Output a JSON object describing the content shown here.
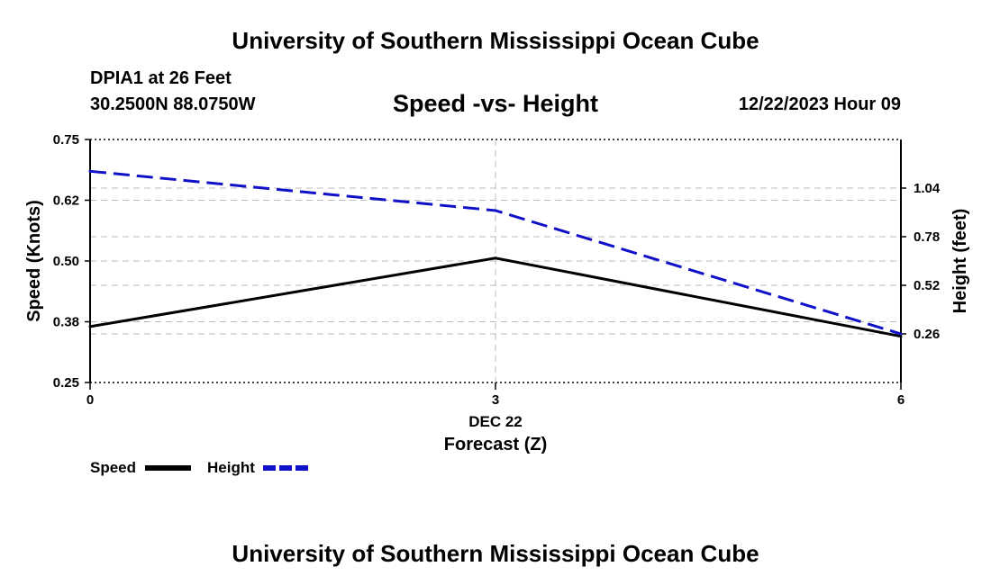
{
  "header": {
    "title": "University of Southern Mississippi Ocean Cube",
    "station": "DPIA1 at 26 Feet",
    "coordinates": "30.2500N  88.0750W",
    "chart_title": "Speed -vs- Height",
    "datetime": "12/22/2023 Hour 09"
  },
  "footer": {
    "title": "University of Southern Mississippi Ocean Cube"
  },
  "legend": {
    "speed_label": "Speed",
    "height_label": "Height"
  },
  "colors": {
    "speed": "#000000",
    "height": "#1010c8",
    "grid": "#bbbbbb"
  },
  "chart_data": {
    "type": "line",
    "x": [
      0,
      3,
      6
    ],
    "xticks": [
      "0",
      "3",
      "6"
    ],
    "xlim": [
      0,
      6
    ],
    "xdate_label": "DEC 22",
    "xlabel": "Forecast (Z)",
    "ylabel_left": "Speed (Knots)",
    "ylabel_right": "Height (feet)",
    "ylim_left": [
      0.25,
      0.75
    ],
    "yticks_left": [
      "0.25",
      "0.38",
      "0.50",
      "0.62",
      "0.75"
    ],
    "ytick_values_left": [
      0.25,
      0.375,
      0.5,
      0.625,
      0.75
    ],
    "ylim_right": [
      0.0,
      1.3
    ],
    "yticks_right": [
      "0.26",
      "0.52",
      "0.78",
      "1.04"
    ],
    "ytick_values_right": [
      0.26,
      0.52,
      0.78,
      1.04
    ],
    "series": [
      {
        "name": "Speed",
        "axis": "left",
        "style": "solid",
        "values": [
          0.365,
          0.506,
          0.345
        ]
      },
      {
        "name": "Height",
        "axis": "right",
        "style": "dashed",
        "values": [
          1.13,
          0.92,
          0.26
        ]
      }
    ]
  }
}
